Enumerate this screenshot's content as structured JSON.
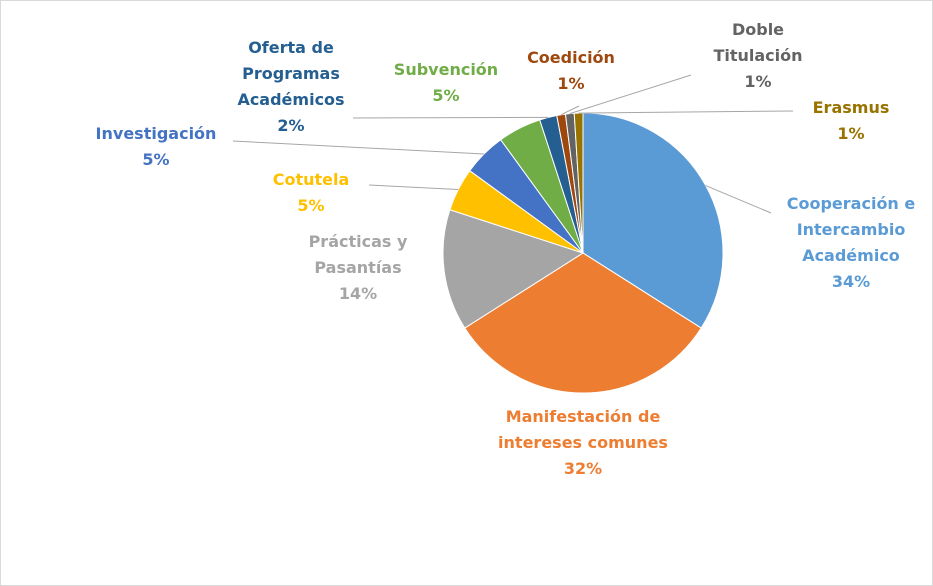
{
  "chart_data": {
    "type": "pie",
    "categories": [
      "Cooperación e Intercambio Académico",
      "Manifestación de intereses comunes",
      "Prácticas y Pasantías",
      "Cotutela",
      "Investigación",
      "Subvención",
      "Oferta de Programas Académicos",
      "Coedición",
      "Doble Titulación",
      "Erasmus"
    ],
    "values": [
      34,
      32,
      14,
      5,
      5,
      5,
      2,
      1,
      1,
      1
    ],
    "value_labels": [
      "34%",
      "32%",
      "14%",
      "5%",
      "5%",
      "5%",
      "2%",
      "1%",
      "1%",
      "1%"
    ],
    "colors": [
      "#5b9bd5",
      "#ed7d31",
      "#a5a5a5",
      "#ffc000",
      "#4472c4",
      "#70ad47",
      "#255e91",
      "#9e480e",
      "#636363",
      "#997300"
    ]
  }
}
